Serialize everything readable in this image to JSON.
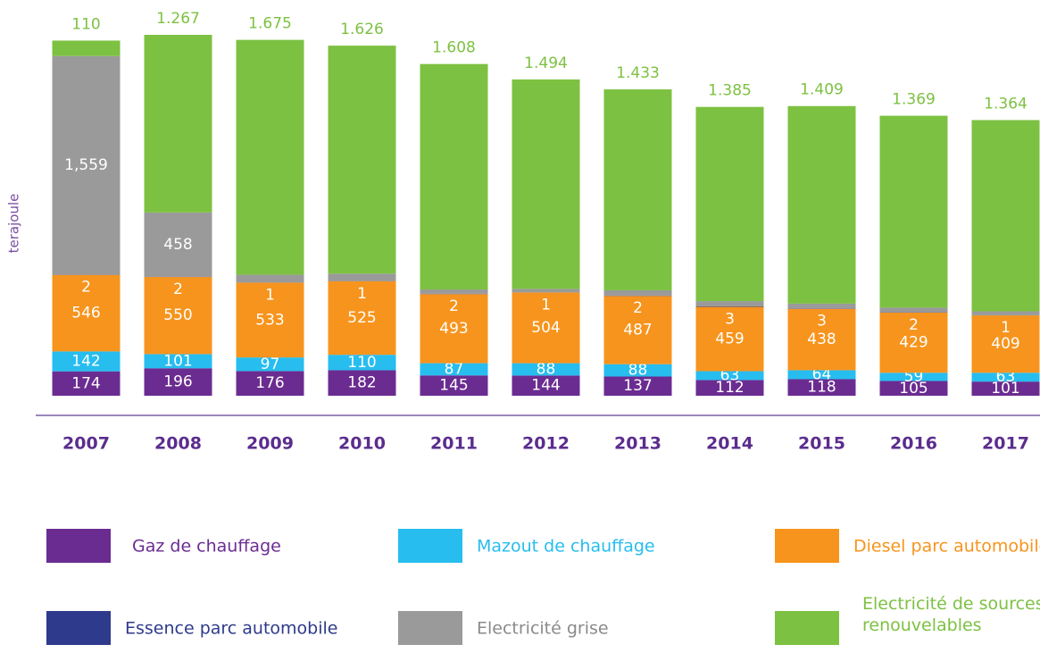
{
  "chart_data": {
    "type": "stacked-bar",
    "ylabel": "terajoule",
    "categories": [
      "2007",
      "2008",
      "2009",
      "2010",
      "2011",
      "2012",
      "2013",
      "2014",
      "2015",
      "2016",
      "2017"
    ],
    "series": [
      {
        "name": "Gaz de chauffage",
        "color": "#6b2c91",
        "values": [
          174,
          196,
          176,
          182,
          145,
          144,
          137,
          112,
          118,
          105,
          101
        ]
      },
      {
        "name": "Mazout de chauffage",
        "color": "#27bdef",
        "values": [
          142,
          101,
          97,
          110,
          87,
          88,
          88,
          63,
          64,
          59,
          63
        ]
      },
      {
        "name": "Diesel parc automobile",
        "color": "#f7941d",
        "values": [
          546,
          550,
          533,
          525,
          493,
          504,
          487,
          459,
          438,
          429,
          409
        ]
      },
      {
        "name": "Essence parc automobile",
        "color": "#2e3a8c",
        "values": [
          2,
          2,
          1,
          1,
          2,
          1,
          2,
          3,
          3,
          2,
          1
        ]
      },
      {
        "name": "Electricité grise",
        "color": "#9a9a9a",
        "values": [
          1559,
          458,
          56,
          53,
          31,
          25,
          38,
          38,
          34,
          33,
          28
        ],
        "value_labels": [
          "1,559",
          "458",
          "56",
          "53",
          "31",
          "25",
          "38",
          "38",
          "34",
          "33",
          "28"
        ]
      },
      {
        "name": "Electricité de sources renouvelables",
        "color": "#7dc142",
        "values": [
          110,
          1267,
          1675,
          1626,
          1608,
          1494,
          1433,
          1385,
          1409,
          1369,
          1364
        ],
        "value_labels": [
          "110",
          "1.267",
          "1.675",
          "1.626",
          "1.608",
          "1.494",
          "1.433",
          "1.385",
          "1.409",
          "1.369",
          "1.364"
        ]
      }
    ]
  }
}
